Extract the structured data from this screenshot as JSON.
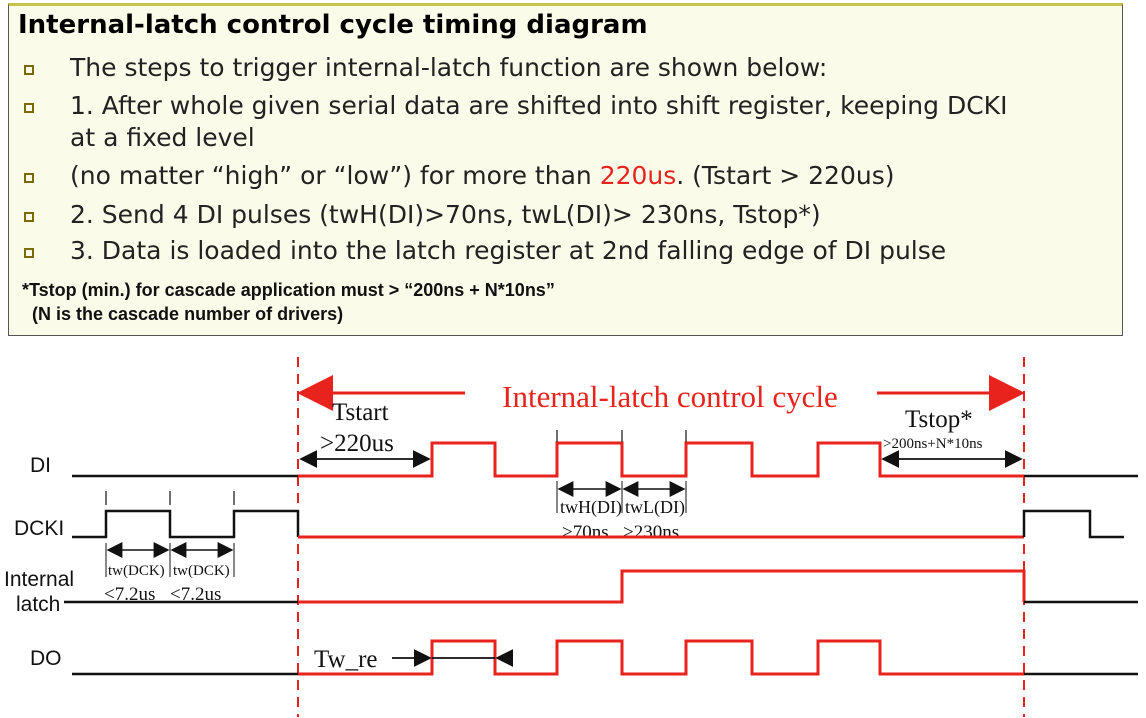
{
  "title": "Internal-latch control cycle timing diagram",
  "bullets": [
    {
      "text": "The steps to trigger internal-latch function are shown below:"
    },
    {
      "text": "1. After whole given serial data are shifted into shift register, keeping DCKI",
      "text2": "at a fixed level"
    },
    {
      "pre": "(no matter “high” or “low”) for more than ",
      "highlight": "220us",
      "post": ". (Tstart > 220us)"
    },
    {
      "text": "2. Send 4 DI pulses (twH(DI)>70ns, twL(DI)> 230ns, Tstop*)"
    },
    {
      "text": "3. Data is loaded into the latch register at 2nd falling edge of DI pulse"
    }
  ],
  "note_line1": "*Tstop (min.) for cascade application must > “200ns + N*10ns”",
  "note_line2": "(N is the cascade number of drivers)",
  "diagram": {
    "cycle_label": "Internal-latch control cycle",
    "signals": {
      "di": "DI",
      "dcki": "DCKI",
      "internal_latch_1": "Internal",
      "internal_latch_2": "latch",
      "do": "DO"
    },
    "tstart_label": "Tstart",
    "tstart_value": ">220us",
    "tstop_label": "Tstop*",
    "tstop_value": ">200ns+N*10ns",
    "twh_label": "twH(DI)",
    "twl_label": "twL(DI)",
    "twh_value": ">70ns",
    "twl_value": ">230ns",
    "tw_dck_label1": "tw(DCK)",
    "tw_dck_label2": "tw(DCK)",
    "tw_dck_value1": "<7.2us",
    "tw_dck_value2": "<7.2us",
    "tw_re_label": "Tw_re",
    "colors": {
      "active": "#e8221c",
      "idle": "#111111",
      "dash": "#e8221c"
    }
  }
}
